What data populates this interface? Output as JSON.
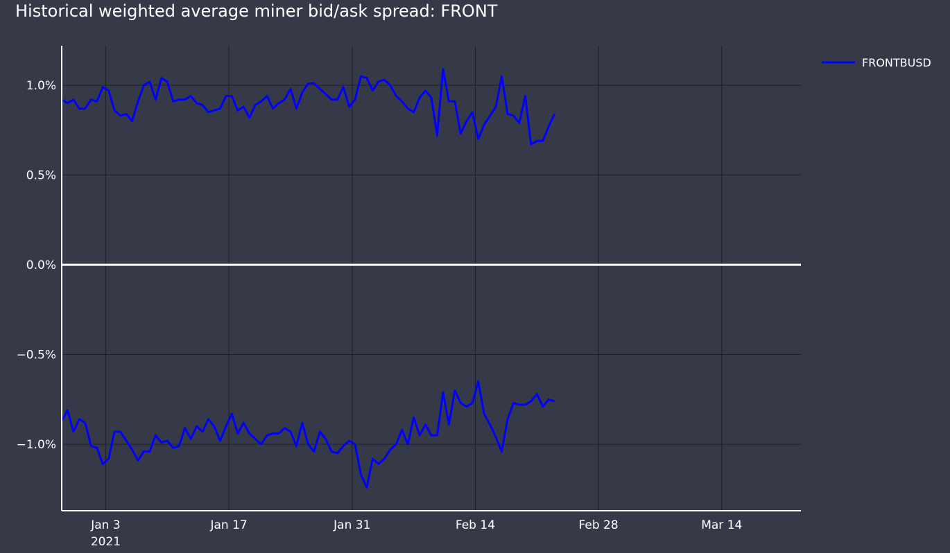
{
  "chart_data": {
    "type": "line",
    "title": "Historical weighted average miner bid/ask spread: FRONT",
    "xlabel": "",
    "ylabel": "",
    "x_axis": {
      "type": "date",
      "tick_labels": [
        "Jan 3",
        "Jan 17",
        "Jan 31",
        "Feb 14",
        "Feb 28",
        "Mar 14"
      ],
      "tick_dates": [
        "2021-01-03",
        "2021-01-17",
        "2021-01-31",
        "2021-02-14",
        "2021-02-28",
        "2021-03-14"
      ],
      "year_label": "2021",
      "range": [
        "2020-12-29",
        "2021-03-23"
      ]
    },
    "y_axis": {
      "tick_values": [
        -1.0,
        -0.5,
        0.0,
        0.5,
        1.0
      ],
      "tick_labels": [
        "−1.0%",
        "−0.5%",
        "0.0%",
        "0.5%",
        "1.0%"
      ],
      "range": [
        -1.37,
        1.22
      ],
      "unit": "%"
    },
    "grid": true,
    "zero_line": true,
    "legend_position": "top-right",
    "colors": {
      "background": "#363a48",
      "series": "#0000ff",
      "grid": "#1e1f27",
      "zero_line": "#ffffff",
      "text": "#ffffff"
    },
    "series": [
      {
        "name": "FRONTBUSD",
        "component": "ask",
        "start_date": "2020-12-29",
        "step_days": 0.6667,
        "values": [
          0.92,
          0.9,
          0.92,
          0.87,
          0.87,
          0.92,
          0.91,
          0.99,
          0.97,
          0.86,
          0.83,
          0.84,
          0.8,
          0.91,
          1.0,
          1.02,
          0.92,
          1.04,
          1.02,
          0.91,
          0.92,
          0.92,
          0.94,
          0.9,
          0.89,
          0.85,
          0.86,
          0.87,
          0.94,
          0.94,
          0.86,
          0.88,
          0.82,
          0.89,
          0.91,
          0.94,
          0.87,
          0.9,
          0.92,
          0.98,
          0.87,
          0.96,
          1.01,
          1.01,
          0.98,
          0.95,
          0.92,
          0.92,
          0.99,
          0.88,
          0.92,
          1.05,
          1.04,
          0.97,
          1.02,
          1.03,
          1.0,
          0.94,
          0.91,
          0.87,
          0.85,
          0.93,
          0.97,
          0.93,
          0.72,
          1.09,
          0.91,
          0.91,
          0.73,
          0.8,
          0.85,
          0.7,
          0.78,
          0.83,
          0.88,
          1.05,
          0.84,
          0.83,
          0.79,
          0.94,
          0.67,
          0.69,
          0.69,
          0.77,
          0.84
        ]
      },
      {
        "name": "FRONTBUSD",
        "component": "bid",
        "start_date": "2020-12-29",
        "step_days": 0.6667,
        "values": [
          -0.87,
          -0.81,
          -0.93,
          -0.86,
          -0.88,
          -1.01,
          -1.02,
          -1.11,
          -1.08,
          -0.93,
          -0.93,
          -0.98,
          -1.03,
          -1.09,
          -1.04,
          -1.04,
          -0.95,
          -0.99,
          -0.98,
          -1.02,
          -1.01,
          -0.91,
          -0.97,
          -0.9,
          -0.93,
          -0.86,
          -0.9,
          -0.98,
          -0.9,
          -0.83,
          -0.94,
          -0.88,
          -0.94,
          -0.97,
          -1.0,
          -0.95,
          -0.94,
          -0.94,
          -0.91,
          -0.93,
          -1.01,
          -0.88,
          -1.0,
          -1.04,
          -0.93,
          -0.97,
          -1.04,
          -1.05,
          -1.01,
          -0.98,
          -1.0,
          -1.17,
          -1.24,
          -1.08,
          -1.11,
          -1.08,
          -1.03,
          -1.0,
          -0.92,
          -1.0,
          -0.85,
          -0.95,
          -0.89,
          -0.95,
          -0.95,
          -0.71,
          -0.89,
          -0.7,
          -0.77,
          -0.79,
          -0.77,
          -0.65,
          -0.83,
          -0.89,
          -0.96,
          -1.04,
          -0.86,
          -0.77,
          -0.78,
          -0.78,
          -0.76,
          -0.72,
          -0.79,
          -0.75,
          -0.76
        ]
      }
    ]
  }
}
